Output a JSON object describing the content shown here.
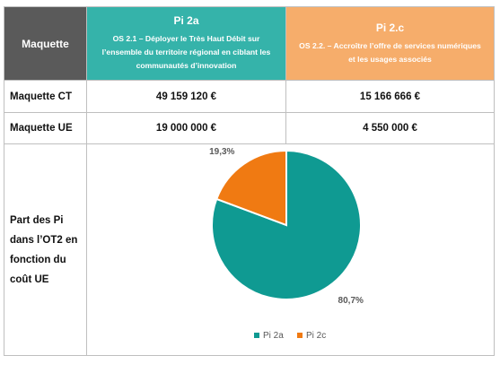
{
  "header": {
    "maquette": "Maquette",
    "pi2a_title": "Pi 2a",
    "pi2a_desc": "OS 2.1 – Déployer le Très Haut Débit sur l’ensemble du territoire régional en ciblant les communautés d’innovation",
    "pi2c_title": "Pi 2.c",
    "pi2c_desc": "OS 2.2. – Accroître l’offre de services numériques et les usages associés"
  },
  "rows": [
    {
      "label": "Maquette CT",
      "pi2a": "49 159 120 €",
      "pi2c": "15 166 666 €"
    },
    {
      "label": "Maquette UE",
      "pi2a": "19 000 000 €",
      "pi2c": "4 550 000 €"
    }
  ],
  "part_label": "Part des Pi dans l’OT2 en fonction du coût UE",
  "colors": {
    "pi2a": "#0f9a92",
    "pi2c": "#f07a12",
    "header_gray": "#5a5a5a"
  },
  "chart_data": {
    "type": "pie",
    "slices": [
      {
        "name": "Pi 2a",
        "value": 80.7,
        "label": "80,7%",
        "color": "#0f9a92"
      },
      {
        "name": "Pi 2c",
        "value": 19.3,
        "label": "19,3%",
        "color": "#f07a12"
      }
    ],
    "legend_position": "bottom"
  }
}
